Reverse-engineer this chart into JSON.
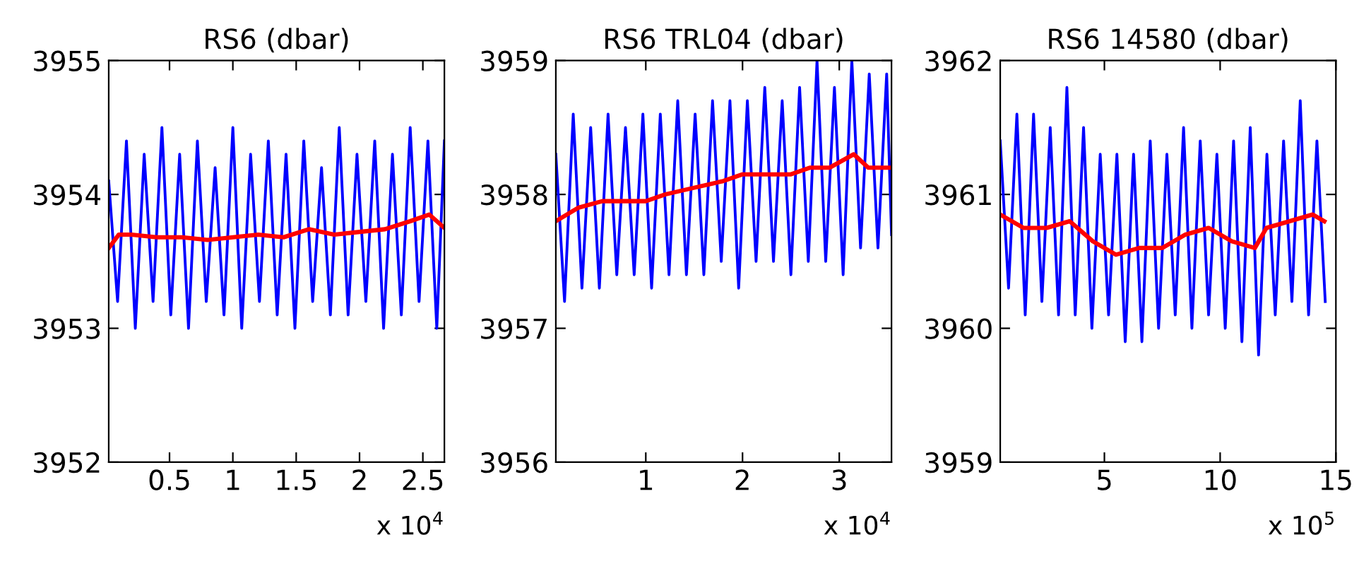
{
  "chart_data": [
    {
      "type": "line",
      "title": "RS6 (dbar)",
      "xlabel": "x 10$^{4}$",
      "xlim": [
        0.02,
        2.67
      ],
      "ylim": [
        3952,
        3955
      ],
      "xticks": [
        0.5,
        1,
        1.5,
        2,
        2.5
      ],
      "yticks": [
        3952,
        3953,
        3954,
        3955
      ],
      "series": [
        {
          "color": "#0000ff",
          "x": [
            0.02,
            0.09,
            0.16,
            0.23,
            0.3,
            0.37,
            0.44,
            0.51,
            0.58,
            0.65,
            0.72,
            0.79,
            0.86,
            0.93,
            1.0,
            1.07,
            1.14,
            1.21,
            1.28,
            1.35,
            1.42,
            1.49,
            1.56,
            1.63,
            1.7,
            1.77,
            1.84,
            1.91,
            1.98,
            2.05,
            2.12,
            2.19,
            2.26,
            2.33,
            2.4,
            2.47,
            2.54,
            2.61,
            2.67
          ],
          "values": [
            3954.1,
            3953.2,
            3954.4,
            3953.0,
            3954.3,
            3953.2,
            3954.5,
            3953.1,
            3954.3,
            3953.0,
            3954.4,
            3953.2,
            3954.2,
            3953.1,
            3954.5,
            3953.0,
            3954.3,
            3953.2,
            3954.4,
            3953.1,
            3954.3,
            3953.0,
            3954.4,
            3953.2,
            3954.2,
            3953.1,
            3954.5,
            3953.1,
            3954.3,
            3953.2,
            3954.4,
            3953.0,
            3954.3,
            3953.1,
            3954.5,
            3953.2,
            3954.4,
            3953.0,
            3954.4
          ]
        },
        {
          "color": "#ff0000",
          "x": [
            0.02,
            0.1,
            0.2,
            0.4,
            0.6,
            0.8,
            1.0,
            1.2,
            1.4,
            1.6,
            1.8,
            2.0,
            2.2,
            2.4,
            2.55,
            2.67
          ],
          "values": [
            3953.6,
            3953.7,
            3953.7,
            3953.68,
            3953.68,
            3953.66,
            3953.68,
            3953.7,
            3953.68,
            3953.74,
            3953.7,
            3953.72,
            3953.74,
            3953.8,
            3953.85,
            3953.75
          ]
        }
      ]
    },
    {
      "type": "line",
      "title": "RS6 TRL04 (dbar)",
      "xlabel": "x 10$^{4}$",
      "xlim": [
        0.07,
        3.54
      ],
      "ylim": [
        3956,
        3959
      ],
      "xticks": [
        1,
        2,
        3
      ],
      "yticks": [
        3956,
        3957,
        3958,
        3959
      ],
      "series": [
        {
          "color": "#0000ff",
          "x": [
            0.07,
            0.16,
            0.25,
            0.34,
            0.43,
            0.52,
            0.61,
            0.7,
            0.79,
            0.88,
            0.97,
            1.06,
            1.15,
            1.24,
            1.33,
            1.42,
            1.51,
            1.6,
            1.69,
            1.78,
            1.87,
            1.96,
            2.05,
            2.14,
            2.23,
            2.32,
            2.41,
            2.5,
            2.59,
            2.68,
            2.77,
            2.86,
            2.95,
            3.04,
            3.13,
            3.22,
            3.31,
            3.4,
            3.49,
            3.54
          ],
          "values": [
            3958.3,
            3957.2,
            3958.6,
            3957.3,
            3958.5,
            3957.3,
            3958.6,
            3957.4,
            3958.5,
            3957.4,
            3958.6,
            3957.3,
            3958.6,
            3957.4,
            3958.7,
            3957.4,
            3958.6,
            3957.4,
            3958.7,
            3957.5,
            3958.7,
            3957.3,
            3958.7,
            3957.5,
            3958.8,
            3957.5,
            3958.7,
            3957.4,
            3958.8,
            3957.5,
            3959.0,
            3957.5,
            3958.8,
            3957.4,
            3959.0,
            3957.6,
            3958.9,
            3957.6,
            3958.9,
            3957.7
          ]
        },
        {
          "color": "#ff0000",
          "x": [
            0.07,
            0.3,
            0.55,
            0.8,
            1.0,
            1.2,
            1.5,
            1.8,
            2.0,
            2.15,
            2.3,
            2.5,
            2.7,
            2.9,
            3.15,
            3.3,
            3.54
          ],
          "values": [
            3957.8,
            3957.9,
            3957.95,
            3957.95,
            3957.95,
            3958.0,
            3958.05,
            3958.1,
            3958.15,
            3958.15,
            3958.15,
            3958.15,
            3958.2,
            3958.2,
            3958.3,
            3958.2,
            3958.2
          ]
        }
      ]
    },
    {
      "type": "line",
      "title": "RS6 14580 (dbar)",
      "xlabel": "x 10$^{5}$",
      "xlim": [
        0.5,
        15
      ],
      "ylim": [
        3959,
        3962
      ],
      "xticks": [
        5,
        10,
        15
      ],
      "yticks": [
        3959,
        3960,
        3961,
        3962
      ],
      "series": [
        {
          "color": "#0000ff",
          "x": [
            0.5,
            0.86,
            1.22,
            1.58,
            1.94,
            2.3,
            2.66,
            3.02,
            3.38,
            3.74,
            4.1,
            4.46,
            4.82,
            5.18,
            5.54,
            5.9,
            6.26,
            6.62,
            6.98,
            7.34,
            7.7,
            8.06,
            8.42,
            8.78,
            9.14,
            9.5,
            9.86,
            10.22,
            10.58,
            10.94,
            11.3,
            11.66,
            12.02,
            12.38,
            12.74,
            13.1,
            13.46,
            13.82,
            14.18,
            14.54
          ],
          "values": [
            3961.4,
            3960.3,
            3961.6,
            3960.1,
            3961.6,
            3960.2,
            3961.5,
            3960.1,
            3961.8,
            3960.1,
            3961.5,
            3960.0,
            3961.3,
            3960.1,
            3961.3,
            3959.9,
            3961.3,
            3959.9,
            3961.4,
            3960.0,
            3961.3,
            3960.1,
            3961.5,
            3960.0,
            3961.4,
            3960.1,
            3961.3,
            3960.0,
            3961.4,
            3959.9,
            3961.5,
            3959.8,
            3961.3,
            3960.1,
            3961.4,
            3960.2,
            3961.7,
            3960.1,
            3961.4,
            3960.2
          ]
        },
        {
          "color": "#ff0000",
          "x": [
            0.5,
            1.5,
            2.5,
            3.5,
            4.5,
            5.5,
            6.5,
            7.5,
            8.5,
            9.5,
            10.5,
            11.5,
            12,
            13,
            14,
            14.5
          ],
          "values": [
            3960.85,
            3960.75,
            3960.75,
            3960.8,
            3960.65,
            3960.55,
            3960.6,
            3960.6,
            3960.7,
            3960.75,
            3960.65,
            3960.6,
            3960.75,
            3960.8,
            3960.85,
            3960.8
          ]
        }
      ]
    }
  ]
}
